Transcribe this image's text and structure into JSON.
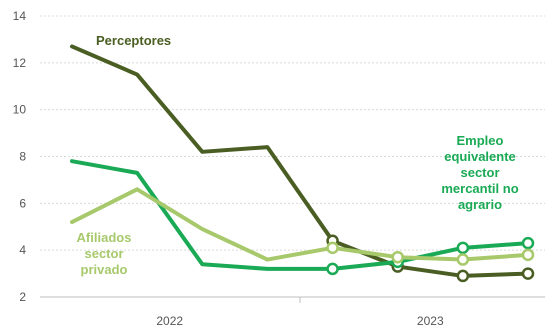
{
  "chart_data": {
    "type": "line",
    "x": [
      0,
      1,
      2,
      3,
      4,
      5,
      6,
      7
    ],
    "xticks": [
      {
        "at": 1.5,
        "label": "2022"
      },
      {
        "at": 5.5,
        "label": "2023"
      }
    ],
    "ylim": [
      2,
      14
    ],
    "yticks": [
      2,
      4,
      6,
      8,
      10,
      12,
      14
    ],
    "grid": true,
    "series": [
      {
        "name": "Perceptores",
        "label_lines": [
          "Perceptores"
        ],
        "color": "#4a5e23",
        "values": [
          12.7,
          11.5,
          8.2,
          8.4,
          4.4,
          3.3,
          2.9,
          3.0
        ],
        "markers_from": 4
      },
      {
        "name": "Empleo equivalente sector mercantil no agrario",
        "label_lines": [
          "Empleo",
          "equivalente",
          "sector",
          "mercantil no",
          "agrario"
        ],
        "color": "#1aaa55",
        "values": [
          7.8,
          7.3,
          3.4,
          3.2,
          3.2,
          3.5,
          4.1,
          4.3
        ],
        "markers_from": 4
      },
      {
        "name": "Afiliados sector privado",
        "label_lines": [
          "Afiliados",
          "sector",
          "privado"
        ],
        "color": "#a7c96b",
        "values": [
          5.2,
          6.6,
          4.9,
          3.6,
          4.1,
          3.7,
          3.6,
          3.8
        ],
        "markers_from": 4
      }
    ]
  }
}
